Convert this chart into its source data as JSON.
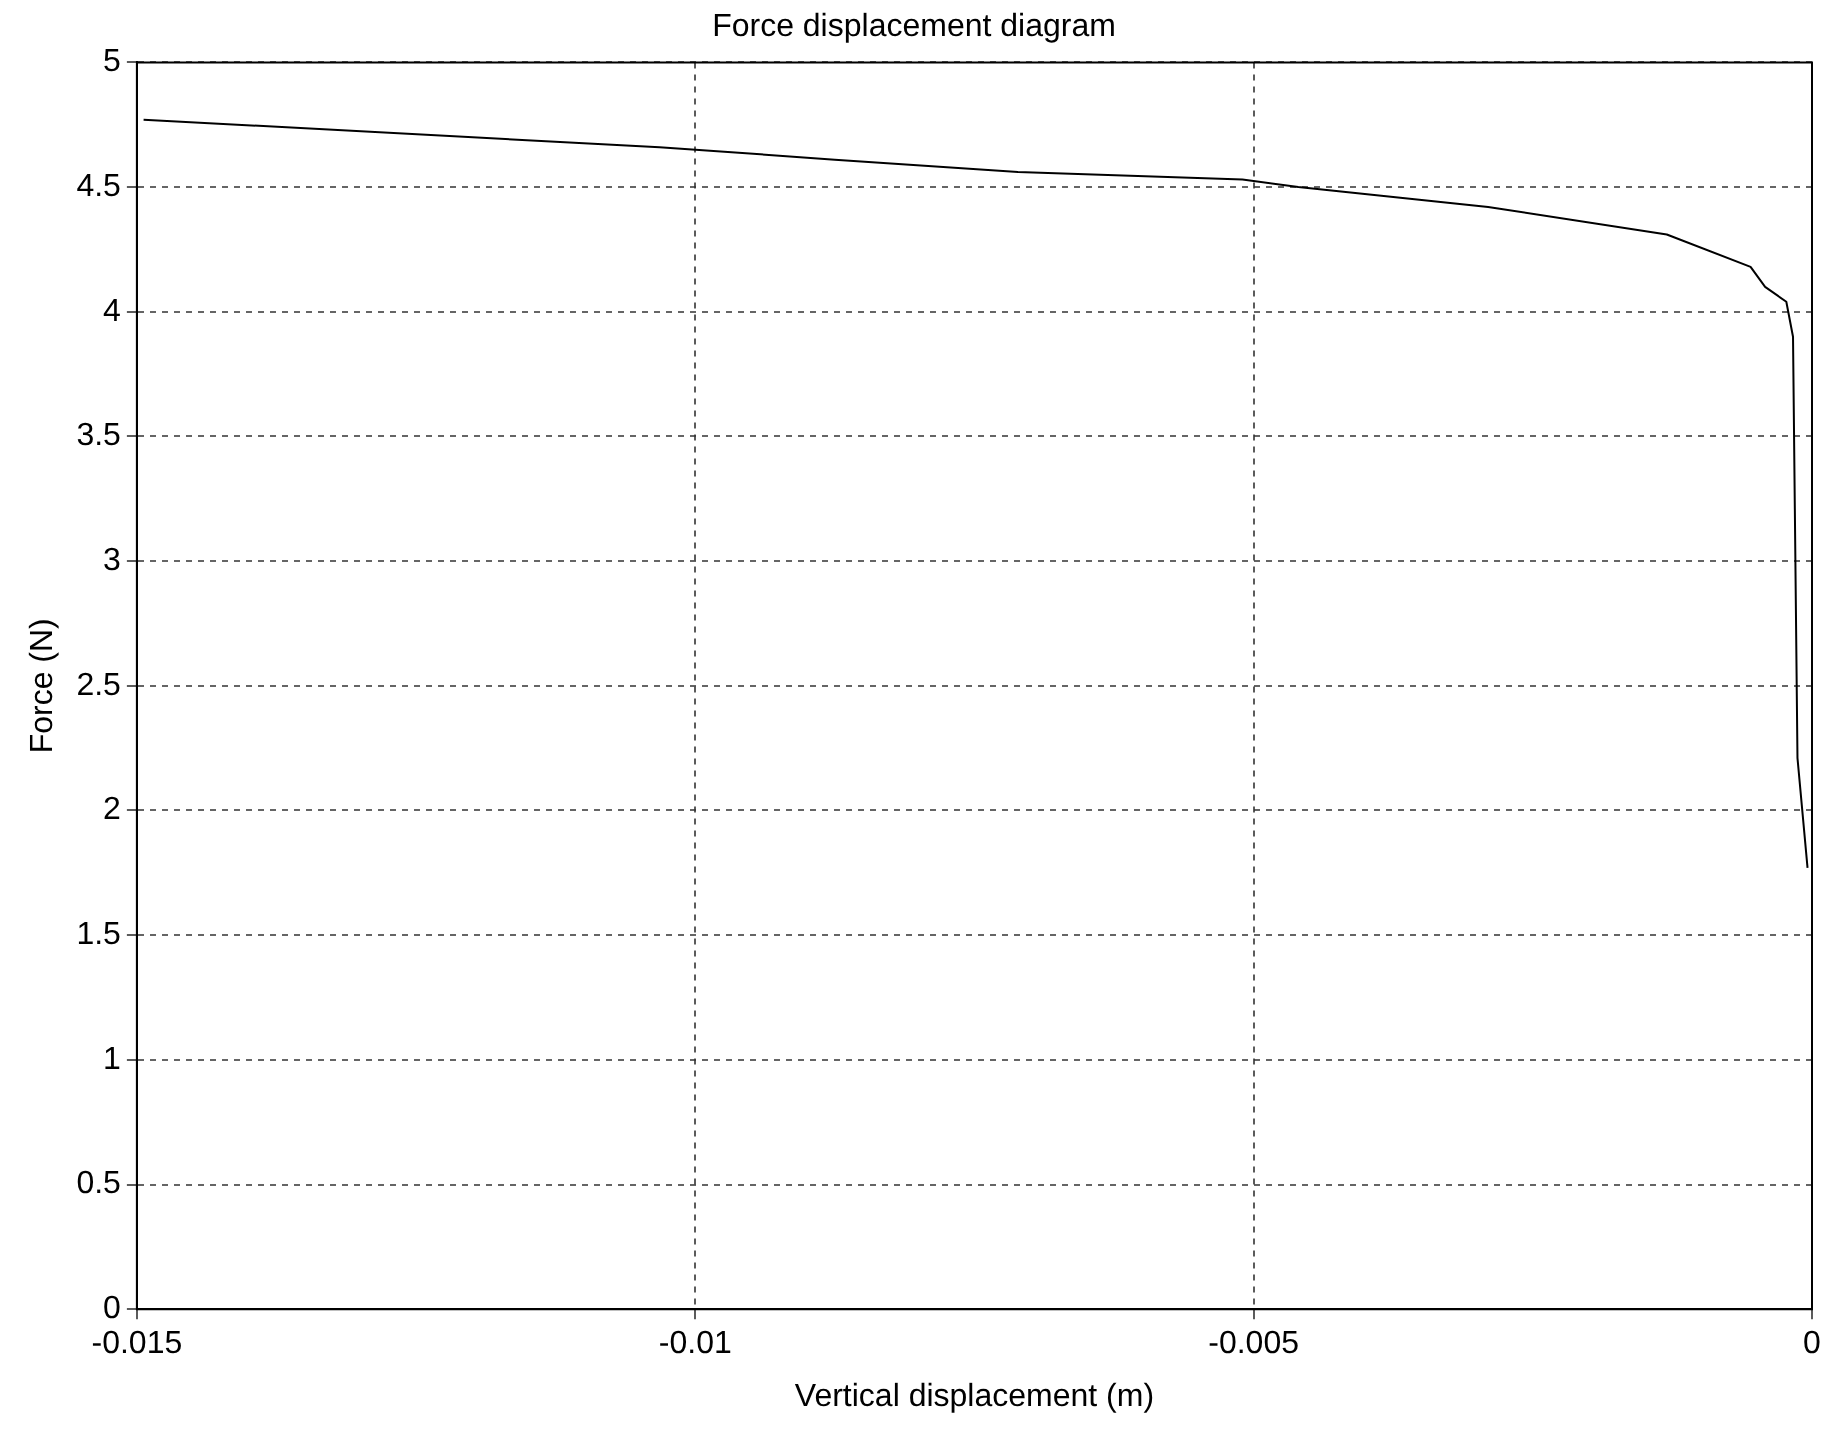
{
  "chart_data": {
    "type": "line",
    "title": "Force displacement diagram",
    "xlabel": "Vertical displacement (m)",
    "ylabel": "Force (N)",
    "x": [
      -0.01494,
      -0.01032,
      -0.00875,
      -0.00711,
      -0.0051,
      -0.0046,
      -0.0029,
      -0.0013,
      -0.00055,
      -0.00042,
      -0.00023,
      -0.00017,
      -0.00013,
      -4e-05
    ],
    "series": [
      {
        "color": "#000000",
        "values": [
          4.77,
          4.66,
          4.61,
          4.56,
          4.53,
          4.5,
          4.42,
          4.31,
          4.18,
          4.1,
          4.04,
          3.9,
          2.21,
          1.77
        ]
      }
    ],
    "xlim": [
      -0.015,
      0
    ],
    "xticks": [
      -0.015,
      -0.01,
      -0.005,
      0
    ],
    "ylim": [
      0,
      5
    ],
    "yticks": [
      0,
      0.5,
      1,
      1.5,
      2,
      2.5,
      3,
      3.5,
      4,
      4.5,
      5
    ],
    "grid": true,
    "legend": false,
    "marker": "none",
    "line_style": "solid"
  }
}
